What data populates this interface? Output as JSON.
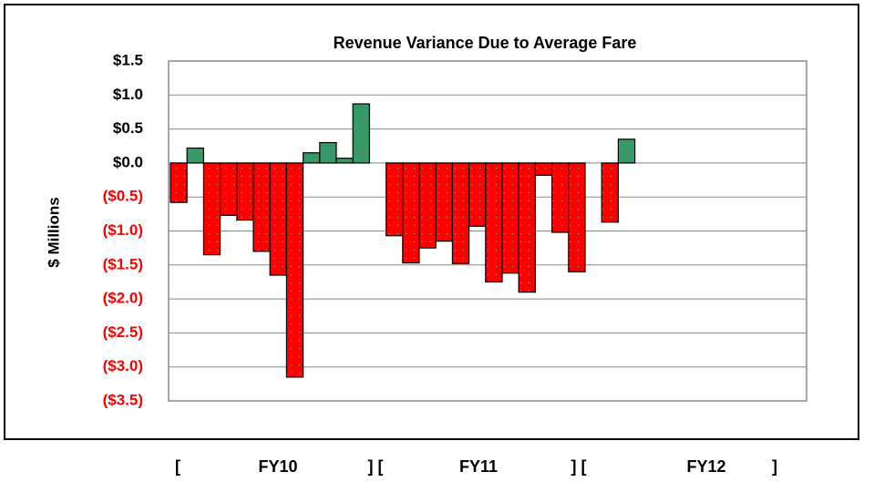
{
  "chart_data": {
    "type": "bar",
    "title": "Revenue Variance Due to Average Fare",
    "ylabel": "$ Millions",
    "categories": [
      null,
      null,
      null,
      null,
      null,
      null,
      null,
      null,
      null,
      null,
      null,
      null,
      null,
      null,
      null,
      null,
      null,
      null,
      null,
      null,
      null,
      null,
      null,
      null,
      null,
      null,
      null,
      null,
      null,
      null,
      null,
      null,
      null,
      null,
      null,
      null,
      null,
      null
    ],
    "values": [
      -0.58,
      0.22,
      -1.35,
      -0.77,
      -0.84,
      -1.3,
      -1.65,
      -3.15,
      0.15,
      0.3,
      0.07,
      0.87,
      null,
      -1.07,
      -1.47,
      -1.25,
      -1.15,
      -1.48,
      -0.93,
      -1.75,
      -1.62,
      -1.9,
      -0.18,
      -1.02,
      -1.6,
      null,
      -0.87,
      0.35,
      null,
      null,
      null,
      null,
      null,
      null,
      null,
      null,
      null,
      null
    ],
    "positive_color": "#339966",
    "negative_color": "#ff0000",
    "negative_label_color": "#ff0000",
    "ylim": [
      -3.5,
      1.5
    ],
    "yticks": [
      {
        "value": 1.5,
        "label": "$1.5"
      },
      {
        "value": 1.0,
        "label": "$1.0"
      },
      {
        "value": 0.5,
        "label": "$0.5"
      },
      {
        "value": 0.0,
        "label": "$0.0"
      },
      {
        "value": -0.5,
        "label": "($0.5)"
      },
      {
        "value": -1.0,
        "label": "($1.0)"
      },
      {
        "value": -1.5,
        "label": "($1.5)"
      },
      {
        "value": -2.0,
        "label": "($2.0)"
      },
      {
        "value": -2.5,
        "label": "($2.5)"
      },
      {
        "value": -3.0,
        "label": "($3.0)"
      },
      {
        "value": -3.5,
        "label": "($3.5)"
      }
    ],
    "grid": true,
    "group_labels": [
      "[",
      "FY10",
      "] [",
      "FY11",
      "] [",
      "FY12",
      "]"
    ]
  }
}
